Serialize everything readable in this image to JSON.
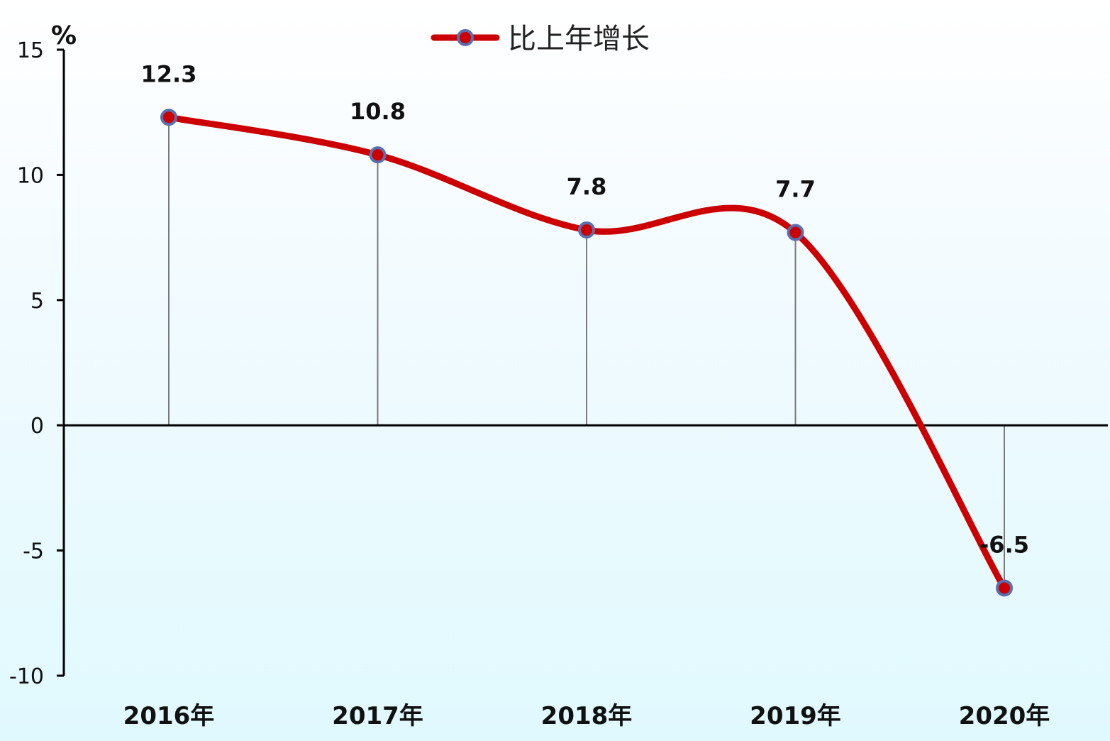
{
  "chart_data": {
    "type": "line",
    "unit": "%",
    "categories": [
      "2016年",
      "2017年",
      "2018年",
      "2019年",
      "2020年"
    ],
    "series": [
      {
        "name": "比上年增长",
        "values": [
          12.3,
          10.8,
          7.8,
          7.7,
          -6.5
        ],
        "data_labels": [
          "12.3",
          "10.8",
          "7.8",
          "7.7",
          "-6.5"
        ],
        "color": "#cc0000",
        "marker_color": "#5a6fb0"
      }
    ],
    "y_ticks": [
      15,
      10,
      5,
      0,
      -5,
      -10
    ],
    "y_tick_labels": [
      "15",
      "10",
      "5",
      "0",
      "-5",
      "-10"
    ],
    "ylim": [
      -10,
      15
    ],
    "legend_position": "top-center",
    "grid": false,
    "smooth": true,
    "drop_lines": true
  }
}
